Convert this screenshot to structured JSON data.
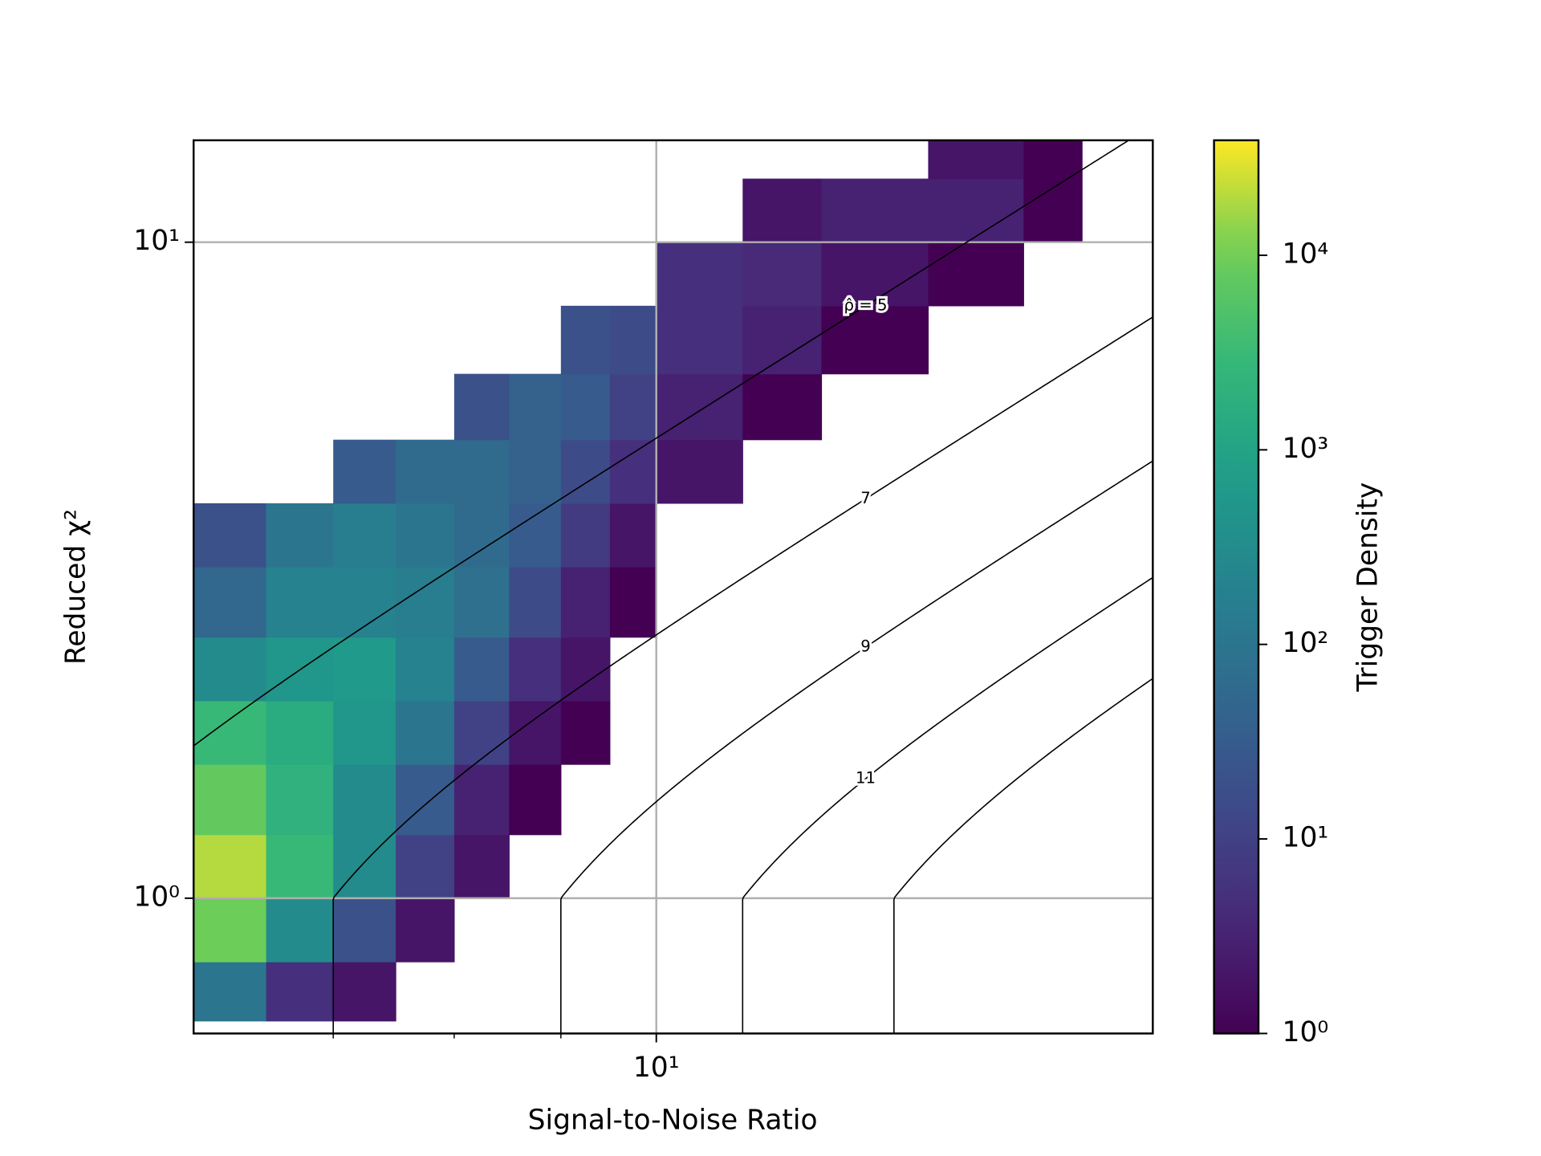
{
  "chart_data": {
    "type": "hexbin",
    "xlabel": "Signal-to-Noise Ratio",
    "ylabel": "Reduced χ²",
    "xlog": true,
    "ylog": true,
    "xlim": [
      6,
      17.3
    ],
    "ylim": [
      0.622,
      14.3
    ],
    "xticks": [
      {
        "value": 10,
        "label": "10¹"
      }
    ],
    "xminor": [
      7,
      8,
      9
    ],
    "yticks": [
      {
        "value": 1,
        "label": "10⁰"
      },
      {
        "value": 10,
        "label": "10¹"
      }
    ],
    "grid": true,
    "grid_color": "#b0b0b0",
    "density": {
      "x_edges": [
        6,
        6.5,
        7,
        7.5,
        8,
        8.5,
        9,
        9.5,
        10,
        11,
        12,
        13.5,
        15,
        16
      ],
      "y_edges": [
        0.65,
        0.8,
        1,
        1.25,
        1.6,
        2,
        2.5,
        3.2,
        4,
        5,
        6.3,
        8,
        10,
        12.5,
        14.3
      ],
      "values": [
        [
          100,
          5,
          2,
          null,
          null,
          null,
          null,
          null,
          null,
          null,
          null,
          null,
          null
        ],
        [
          10000,
          300,
          20,
          2,
          null,
          null,
          null,
          null,
          null,
          null,
          null,
          null,
          null
        ],
        [
          20000,
          3000,
          300,
          10,
          2,
          null,
          null,
          null,
          null,
          null,
          null,
          null,
          null
        ],
        [
          8000,
          2000,
          300,
          30,
          3,
          1,
          null,
          null,
          null,
          null,
          null,
          null,
          null
        ],
        [
          3000,
          1500,
          500,
          100,
          10,
          2,
          1,
          null,
          null,
          null,
          null,
          null,
          null
        ],
        [
          300,
          500,
          600,
          200,
          30,
          5,
          2,
          null,
          null,
          null,
          null,
          null,
          null
        ],
        [
          50,
          200,
          200,
          150,
          80,
          15,
          3,
          1,
          null,
          null,
          null,
          null,
          null
        ],
        [
          20,
          100,
          150,
          100,
          60,
          30,
          8,
          2,
          null,
          null,
          null,
          null,
          null
        ],
        [
          null,
          null,
          30,
          60,
          60,
          40,
          15,
          5,
          2,
          null,
          null,
          null,
          null
        ],
        [
          null,
          null,
          null,
          null,
          20,
          40,
          30,
          10,
          3,
          1,
          null,
          null,
          null
        ],
        [
          null,
          null,
          null,
          null,
          null,
          null,
          20,
          15,
          5,
          3,
          1,
          null,
          null
        ],
        [
          null,
          null,
          null,
          null,
          null,
          null,
          null,
          null,
          5,
          4,
          2,
          1,
          null
        ],
        [
          null,
          null,
          null,
          null,
          null,
          null,
          null,
          null,
          null,
          2,
          3,
          3,
          1
        ],
        [
          null,
          null,
          null,
          null,
          null,
          null,
          null,
          null,
          null,
          null,
          null,
          2,
          1
        ]
      ]
    },
    "colorbar": {
      "label": "Trigger Density",
      "log": true,
      "cmap": "viridis",
      "clim": [
        1,
        39000
      ],
      "ticks": [
        {
          "value": 1,
          "label": "10⁰"
        },
        {
          "value": 10,
          "label": "10¹"
        },
        {
          "value": 100,
          "label": "10²"
        },
        {
          "value": 1000,
          "label": "10³"
        },
        {
          "value": 10000,
          "label": "10⁴"
        }
      ]
    },
    "contours": {
      "levels": [
        5,
        7,
        9,
        11,
        13
      ],
      "labels": [
        "ρ̂ = 5",
        "7",
        "9",
        "11",
        null
      ],
      "color": "#000000"
    }
  }
}
